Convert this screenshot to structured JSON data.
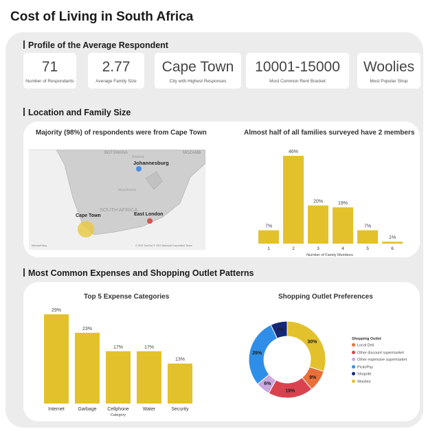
{
  "title": "Cost of Living in South Africa",
  "sections": {
    "profile": "Profile of the Average Respondent",
    "location": "Location and Family Size",
    "expenses": "Most Common Expenses and Shopping Outlet Patterns"
  },
  "kpis": [
    {
      "value": "71",
      "label": "Number of Respondants"
    },
    {
      "value": "2.77",
      "label": "Average Family Size"
    },
    {
      "value": "Cape Town",
      "label": "City with Highest Responses"
    },
    {
      "value": "10001-15000",
      "label": "Most Common Rent Bracket"
    },
    {
      "value": "Woolies",
      "label": "Most Popular Shop"
    }
  ],
  "map": {
    "title": "Majority (98%) of respondents were from Cape Town",
    "places": [
      "Johannesburg",
      "Cape Town",
      "East London",
      "SOUTH AFRICA",
      "BOTSWANA",
      "MOZAMB",
      "Bloemfontein",
      "Pretoria"
    ],
    "credit": "© 2022 TomTom © 2022 Microsoft Corporation Terms",
    "brand": "Microsoft Bing",
    "colors": {
      "cape_town": "#e8c840",
      "johannesburg": "#4a90e2",
      "east_london": "#d9534f"
    }
  },
  "chart_data": [
    {
      "type": "bar",
      "title": "Almost half of all families surveyed have 2 members",
      "categories": [
        "1",
        "2",
        "3",
        "4",
        "5",
        "6"
      ],
      "values": [
        7,
        46,
        20,
        19,
        7,
        1
      ],
      "labels": [
        "7%",
        "46%",
        "20%",
        "19%",
        "7%",
        "1%"
      ],
      "xlabel": "Number of Family Members",
      "ylabel": "",
      "ylim": [
        0,
        46
      ],
      "color": "#e3c12d"
    },
    {
      "type": "bar",
      "title": "Top 5 Expense Categories",
      "categories": [
        "Internet",
        "Garbage",
        "Cellphone",
        "Water",
        "Security"
      ],
      "values": [
        29,
        23,
        17,
        17,
        13
      ],
      "labels": [
        "29%",
        "23%",
        "17%",
        "17%",
        "13%"
      ],
      "xlabel": "Category",
      "ylabel": "",
      "ylim": [
        0,
        29
      ],
      "color": "#e3c12d"
    },
    {
      "type": "pie",
      "title": "Shopping Outlet Preferences",
      "legend_title": "Shopping Outlet",
      "legend_position": "right",
      "series": [
        {
          "name": "Local Deli",
          "value": 9,
          "label": "9%",
          "color": "#e8703a"
        },
        {
          "name": "Other discount supermarket",
          "value": 19,
          "label": "19%",
          "color": "#d9434f"
        },
        {
          "name": "Other expensive supermarket",
          "value": 6,
          "label": "6%",
          "color": "#c9a8e0"
        },
        {
          "name": "PicknPay",
          "value": 29,
          "label": "29%",
          "color": "#2f8fe8"
        },
        {
          "name": "Shoprite",
          "value": 7,
          "label": "7%",
          "color": "#14287a"
        },
        {
          "name": "Woolies",
          "value": 30,
          "label": "30%",
          "color": "#e3c12d"
        }
      ]
    }
  ]
}
